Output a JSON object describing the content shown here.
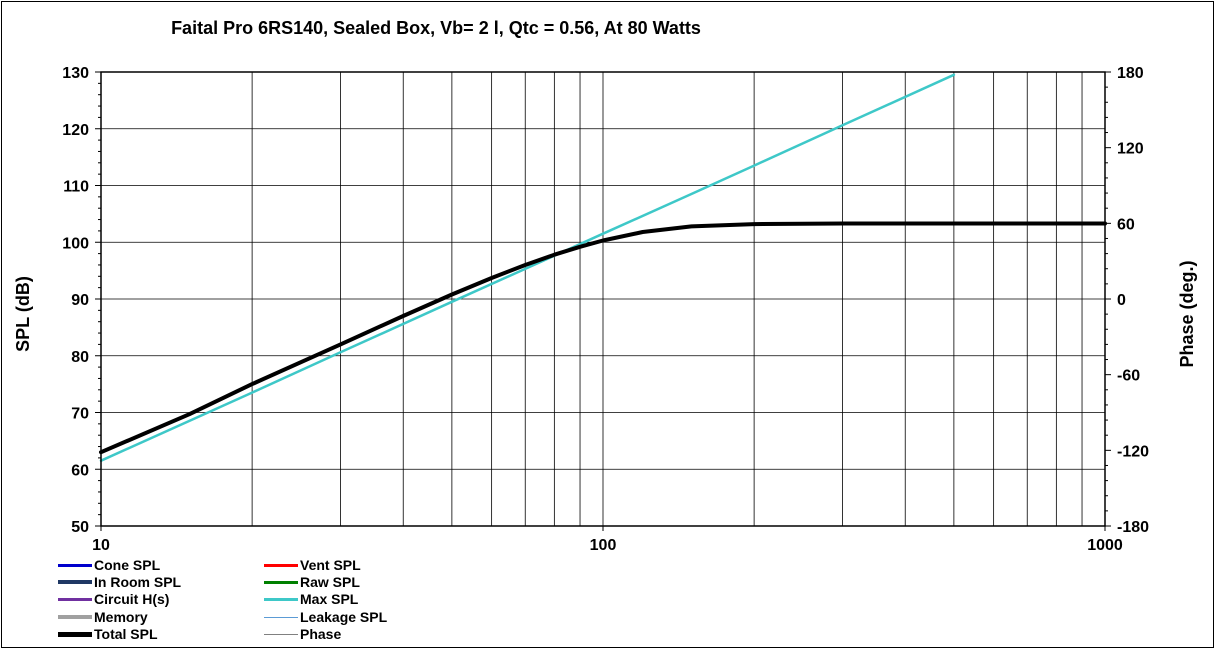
{
  "chart_data": {
    "type": "line",
    "title": "Faital Pro 6RS140,  Sealed Box, Vb= 2 l,  Qtc = 0.56,  At 80 Watts",
    "xlabel": "",
    "ylabel": "SPL (dB)",
    "y2label": "Phase (deg.)",
    "xscale": "log",
    "xlim": [
      10,
      1000
    ],
    "ylim": [
      50,
      130
    ],
    "y2lim": [
      -180,
      180
    ],
    "xticks": [
      "10",
      "100",
      "1000"
    ],
    "yticks": [
      "50",
      "60",
      "70",
      "80",
      "90",
      "100",
      "110",
      "120",
      "130"
    ],
    "y2ticks": [
      "-180",
      "-120",
      "-60",
      "0",
      "60",
      "120",
      "180"
    ],
    "grid": true,
    "series": [
      {
        "name": "Max SPL",
        "color": "#3EC8C8",
        "x": [
          10,
          20,
          30,
          50,
          70,
          100,
          150,
          200,
          300,
          500
        ],
        "y": [
          61.5,
          73.5,
          80.6,
          89.5,
          95.3,
          101.5,
          108.5,
          113.5,
          120.6,
          129.5
        ]
      },
      {
        "name": "Total SPL",
        "color": "#000000",
        "x": [
          10,
          15,
          20,
          30,
          40,
          50,
          60,
          70,
          80,
          90,
          100,
          120,
          150,
          200,
          300,
          500,
          1000
        ],
        "y": [
          63.0,
          69.7,
          75.0,
          82.0,
          87.0,
          90.8,
          93.7,
          96.0,
          97.8,
          99.2,
          100.3,
          101.8,
          102.8,
          103.2,
          103.3,
          103.3,
          103.3
        ]
      }
    ]
  },
  "legend": {
    "left": [
      {
        "label": "Cone SPL",
        "color": "#0000CC",
        "width": 3
      },
      {
        "label": "In Room SPL",
        "color": "#1F3864",
        "width": 4
      },
      {
        "label": "Circuit H(s)",
        "color": "#7030A0",
        "width": 3
      },
      {
        "label": "Memory",
        "color": "#A0A0A0",
        "width": 4
      },
      {
        "label": "Total SPL",
        "color": "#000000",
        "width": 5
      }
    ],
    "right": [
      {
        "label": "Vent SPL",
        "color": "#FF0000",
        "width": 3
      },
      {
        "label": "Raw SPL",
        "color": "#008000",
        "width": 3
      },
      {
        "label": "Max SPL",
        "color": "#3EC8C8",
        "width": 3
      },
      {
        "label": "Leakage SPL",
        "color": "#5B9BD5",
        "width": 1
      },
      {
        "label": "Phase",
        "color": "#808080",
        "width": 1
      }
    ]
  }
}
